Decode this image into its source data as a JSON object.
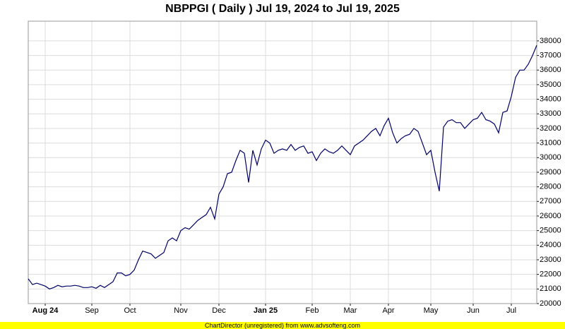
{
  "chart_data": {
    "type": "line",
    "title": "NBPPGI ( Daily ) Jul 19, 2024 to Jul 19, 2025",
    "footer": "ChartDirector (unregistered) from www.advsofteng.com",
    "categories": [
      null,
      null,
      null,
      null,
      "Aug 24",
      null,
      null,
      null,
      null,
      null,
      null,
      null,
      null,
      null,
      null,
      "Sep",
      null,
      null,
      null,
      null,
      null,
      null,
      null,
      null,
      "Oct",
      null,
      null,
      null,
      null,
      null,
      null,
      null,
      null,
      null,
      null,
      null,
      "Nov",
      null,
      null,
      null,
      null,
      null,
      null,
      null,
      null,
      "Dec",
      null,
      null,
      null,
      null,
      null,
      null,
      null,
      null,
      null,
      null,
      "Jan 25",
      null,
      null,
      null,
      null,
      null,
      null,
      null,
      null,
      null,
      null,
      "Feb",
      null,
      null,
      null,
      null,
      null,
      null,
      null,
      null,
      "Mar",
      null,
      null,
      null,
      null,
      null,
      null,
      null,
      null,
      "Apr",
      null,
      null,
      null,
      null,
      null,
      null,
      null,
      null,
      null,
      "May",
      null,
      null,
      null,
      null,
      null,
      null,
      null,
      null,
      null,
      "Jun",
      null,
      null,
      null,
      null,
      null,
      null,
      null,
      null,
      "Jul",
      null,
      null,
      null,
      null,
      null,
      null
    ],
    "values": [
      21700,
      21300,
      21400,
      21300,
      21200,
      21000,
      21100,
      21250,
      21150,
      21200,
      21200,
      21250,
      21200,
      21100,
      21100,
      21150,
      21050,
      21250,
      21100,
      21300,
      21500,
      22100,
      22100,
      21900,
      22000,
      22300,
      23000,
      23600,
      23500,
      23400,
      23100,
      23300,
      23500,
      24300,
      24500,
      24300,
      25000,
      25200,
      25100,
      25400,
      25700,
      25900,
      26100,
      26600,
      25800,
      27500,
      28000,
      28900,
      29000,
      29800,
      30500,
      30300,
      28300,
      30500,
      29500,
      30600,
      31200,
      31000,
      30300,
      30500,
      30600,
      30500,
      30900,
      30500,
      30700,
      30800,
      30300,
      30400,
      29800,
      30300,
      30600,
      30400,
      30300,
      30500,
      30800,
      30500,
      30200,
      30800,
      31000,
      31200,
      31500,
      31800,
      32000,
      31500,
      32200,
      32700,
      31700,
      31000,
      31300,
      31500,
      31600,
      32000,
      31800,
      31000,
      30200,
      30500,
      29000,
      27700,
      32100,
      32500,
      32600,
      32400,
      32400,
      32000,
      32300,
      32600,
      32700,
      33100,
      32600,
      32500,
      32300,
      31700,
      33100,
      33200,
      34200,
      35500,
      36000,
      36000,
      36400,
      37000,
      37700
    ],
    "color": "#000066",
    "ylim": [
      20000,
      39350
    ],
    "yticks": [
      20000,
      21000,
      22000,
      23000,
      24000,
      25000,
      26000,
      27000,
      28000,
      29000,
      30000,
      31000,
      32000,
      33000,
      34000,
      35000,
      36000,
      37000,
      38000
    ],
    "grid": true
  }
}
